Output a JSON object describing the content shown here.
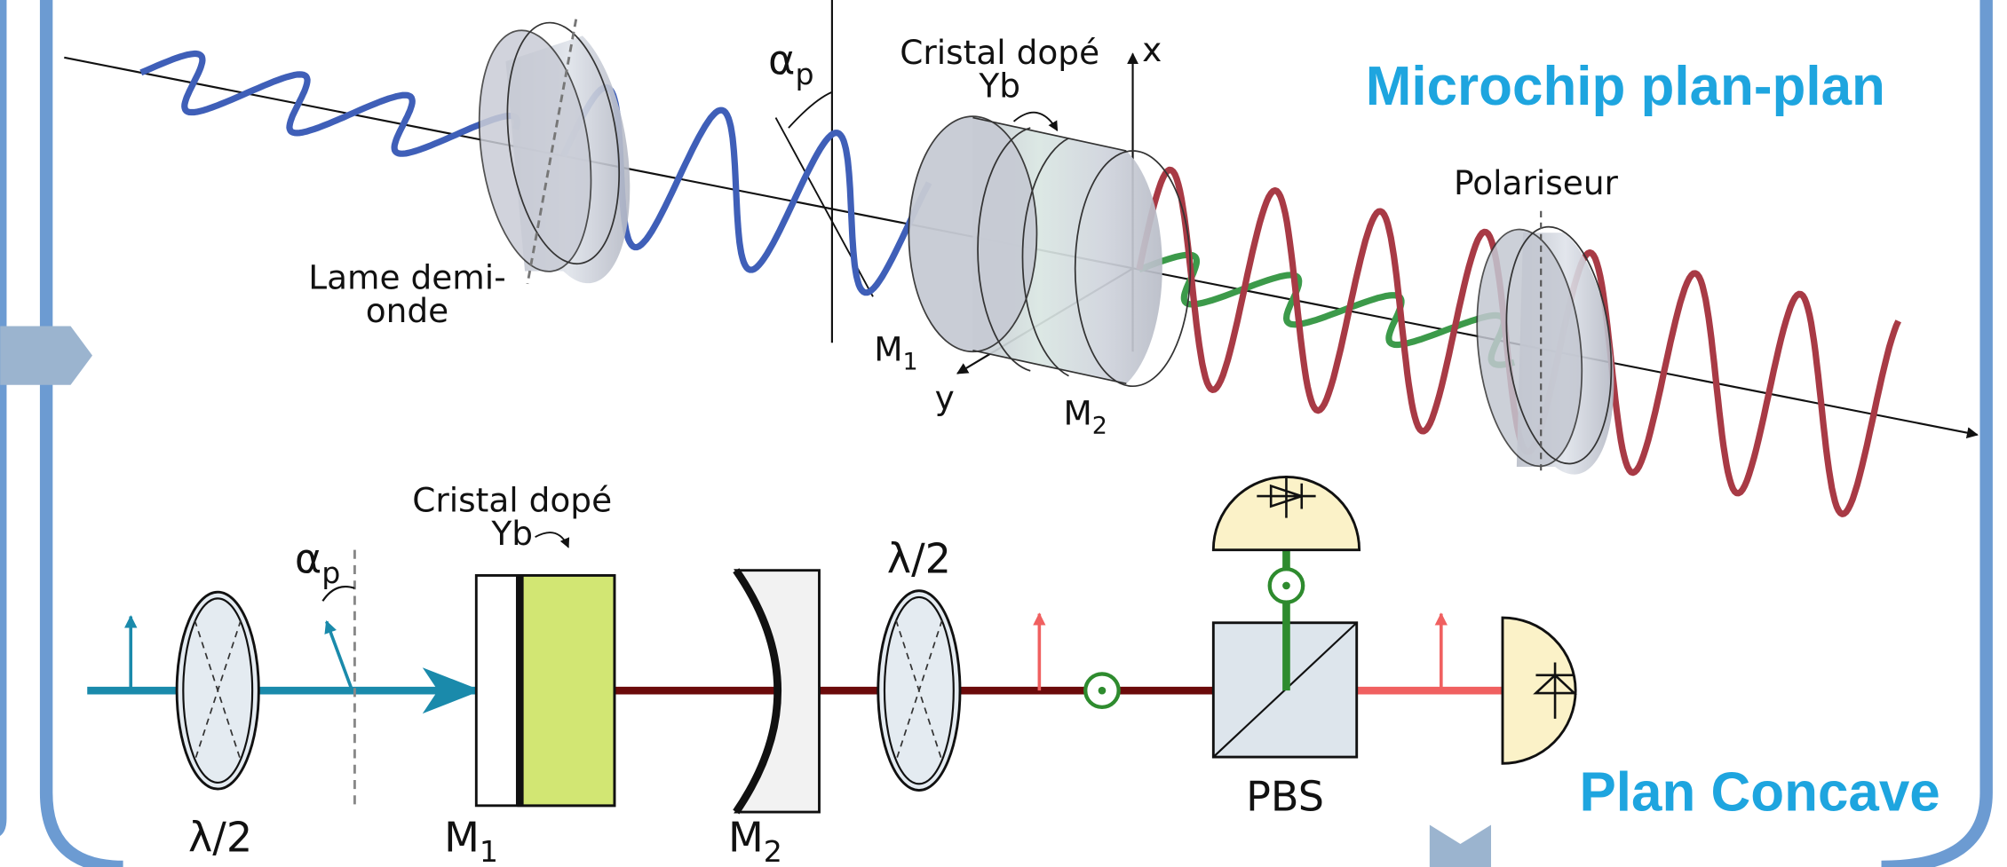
{
  "top_panel": {
    "title": "Microchip plan-plan",
    "crystal": [
      "Cristal dopé",
      "Yb"
    ],
    "half_wave_plate": [
      "Lame demi-",
      "onde"
    ],
    "angle": {
      "base": "α",
      "sub": "p"
    },
    "axis_x": "x",
    "axis_y": "y",
    "mirror_1": {
      "base": "M",
      "sub": "1"
    },
    "mirror_2": {
      "base": "M",
      "sub": "2"
    },
    "polarizer": "Polariseur"
  },
  "bottom_panel": {
    "title": "Plan Concave",
    "crystal": [
      "Cristal dopé",
      "Yb"
    ],
    "angle": {
      "base": "α",
      "sub": "p"
    },
    "plate_1": "λ/2",
    "plate_2": "λ/2",
    "mirror_1": {
      "base": "M",
      "sub": "1"
    },
    "mirror_2": {
      "base": "M",
      "sub": "2"
    },
    "splitter": "PBS"
  }
}
